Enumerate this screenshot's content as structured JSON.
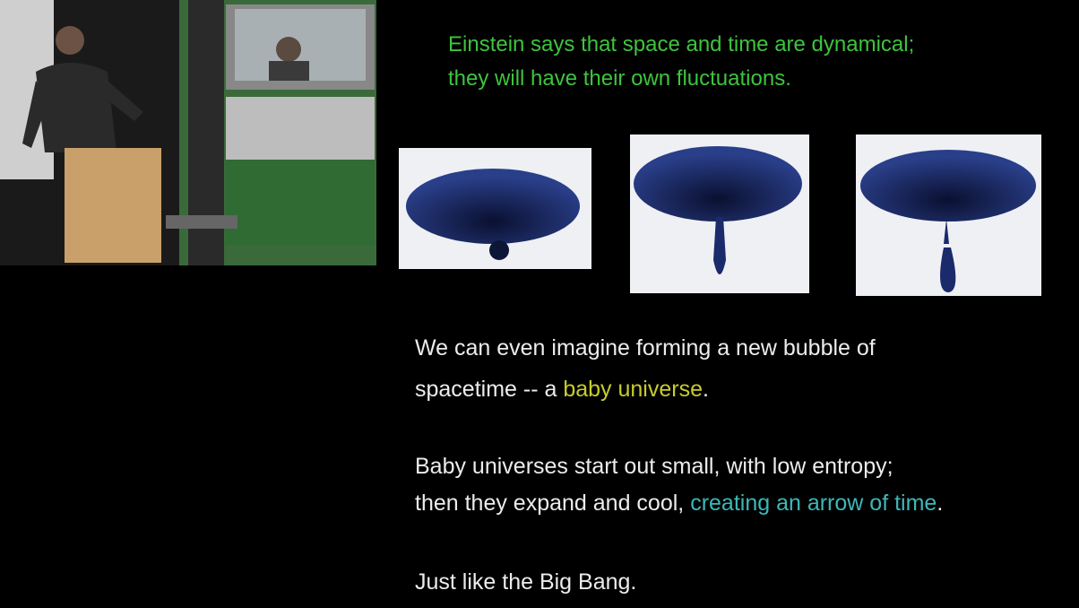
{
  "slide": {
    "heading": [
      "Einstein says that space and time are dynamical;",
      "they will have their own fluctuations."
    ],
    "paragraphs": [
      {
        "lines": [
          [
            "We can even imagine forming a new bubble of"
          ],
          [
            "spacetime -- a ",
            "baby universe",
            "."
          ]
        ]
      },
      {
        "lines": [
          [
            "Baby universes start out small, with low entropy;"
          ],
          [
            "then they expand and cool, ",
            "creating an arrow of time",
            "."
          ]
        ]
      },
      {
        "lines": [
          [
            "Just like the Big Bang."
          ]
        ]
      }
    ]
  }
}
